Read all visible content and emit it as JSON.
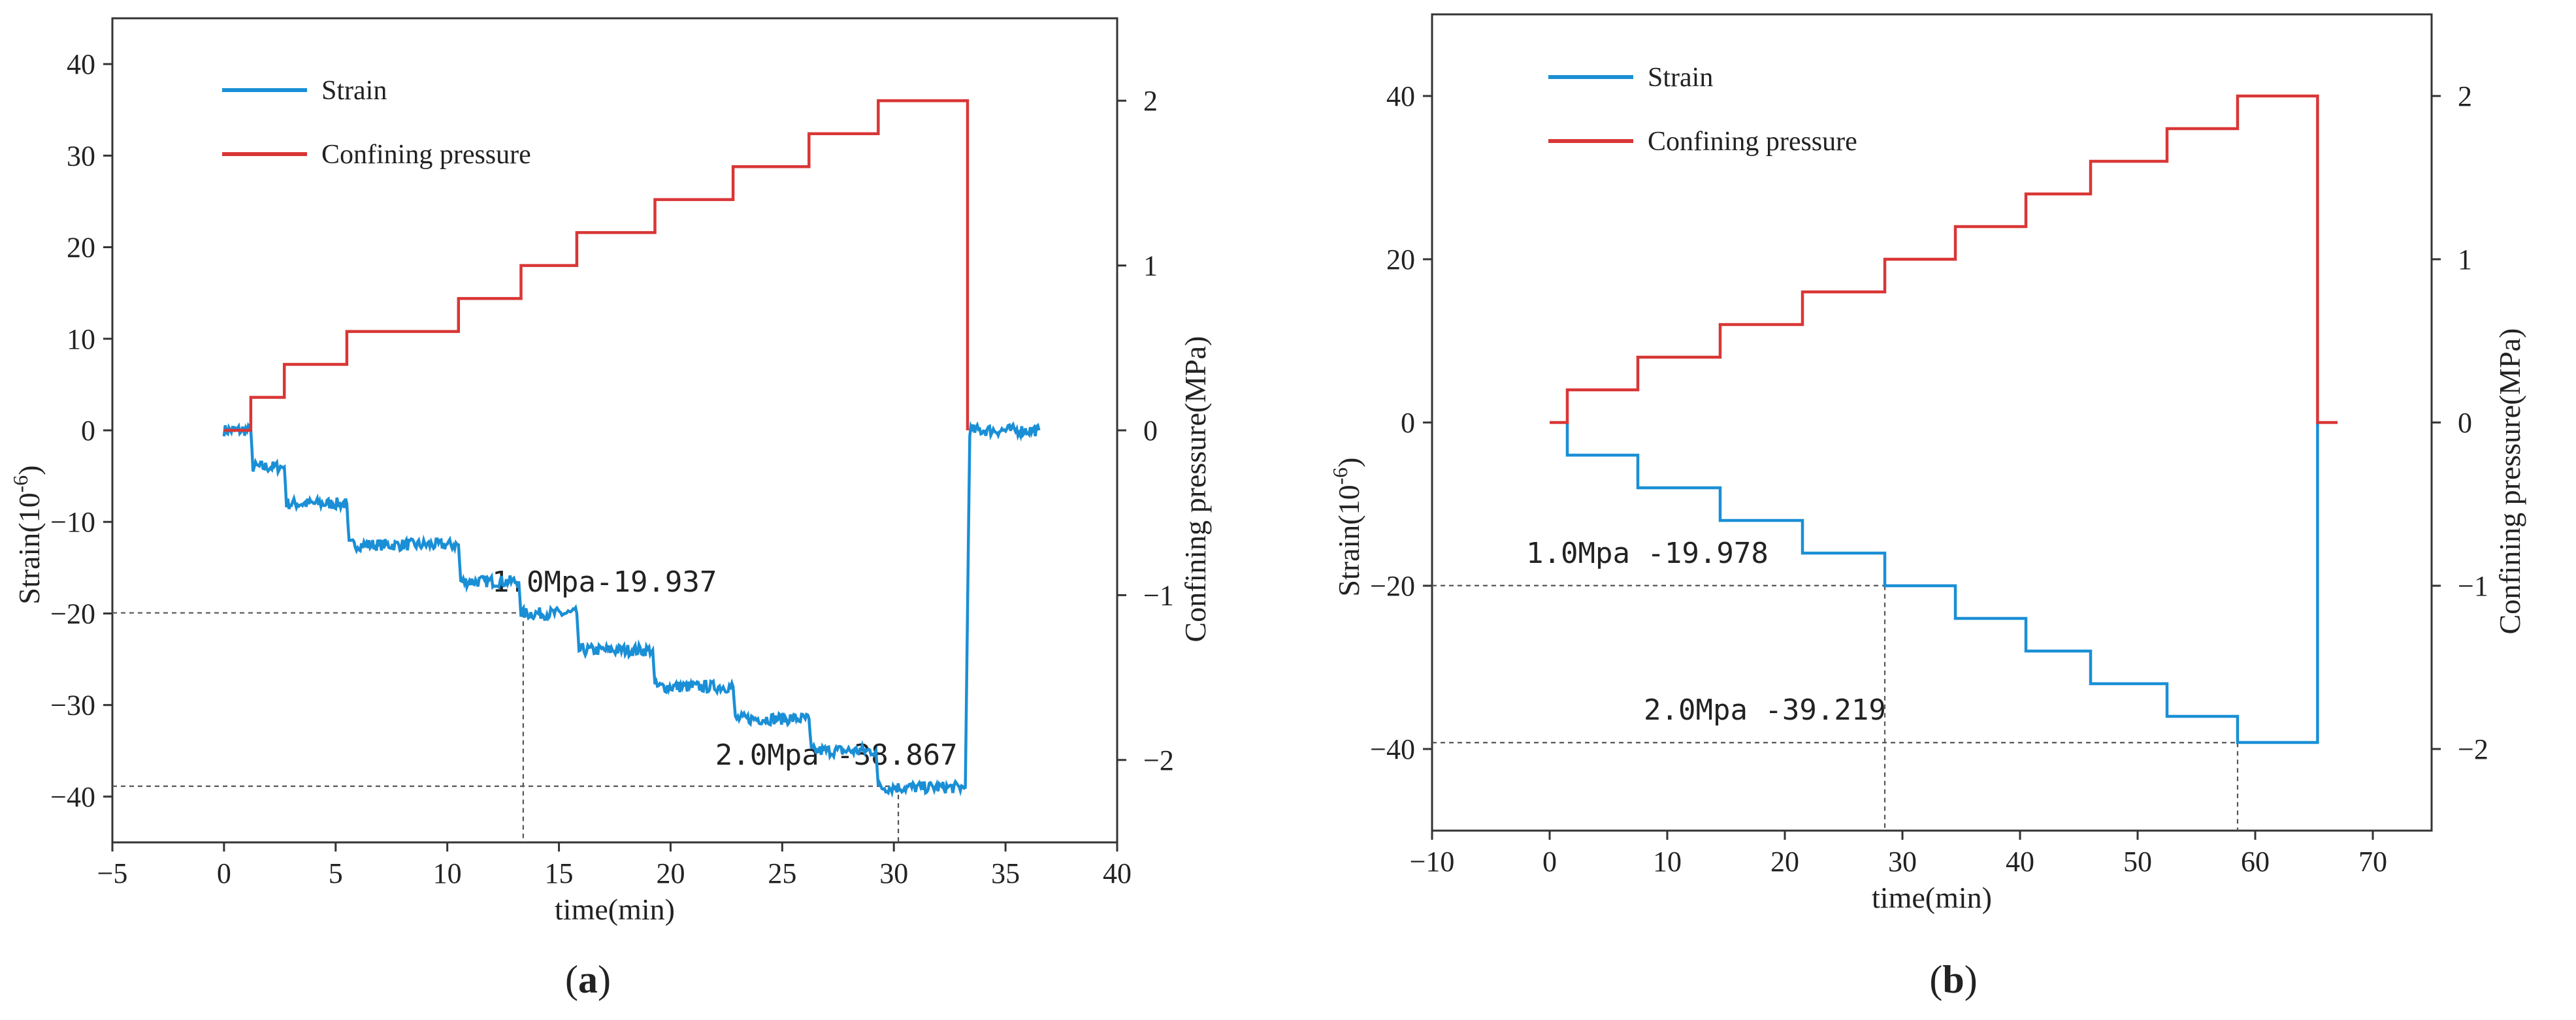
{
  "colors": {
    "strain": "#1a8fd6",
    "pressure": "#d93636",
    "axis": "#333333",
    "guide": "#555555"
  },
  "chart_data": [
    {
      "type": "line",
      "panel_label": "(a)",
      "panel_letter": "a",
      "xlabel": "time(min)",
      "ylabel_left": "Strain(10",
      "ylabel_left_sup": "-6",
      "ylabel_left_close": ")",
      "ylabel_right": "Confining pressure(MPa)",
      "xlim": [
        -5,
        40
      ],
      "ylim_left": [
        -45,
        45
      ],
      "ylim_right": [
        -2.5,
        2.5
      ],
      "xticks": [
        -5,
        0,
        5,
        10,
        15,
        20,
        25,
        30,
        35,
        40
      ],
      "yticks_left": [
        -40,
        -30,
        -20,
        -10,
        0,
        10,
        20,
        30,
        40
      ],
      "yticks_right": [
        -2,
        -1,
        0,
        1,
        2
      ],
      "legend": {
        "position": "top-left",
        "entries": [
          "Strain",
          "Confining pressure"
        ]
      },
      "series": [
        {
          "name": "Strain",
          "axis": "left",
          "noise": true,
          "x": [
            0,
            1.2,
            1.3,
            2.7,
            2.8,
            5.5,
            5.6,
            10.5,
            10.6,
            13.2,
            13.3,
            15.8,
            15.9,
            19.2,
            19.3,
            22.8,
            22.9,
            26.2,
            26.3,
            29.2,
            29.3,
            33.2,
            33.4,
            36.5
          ],
          "y": [
            0,
            0,
            -4,
            -4,
            -8,
            -8,
            -12.5,
            -12.5,
            -16.5,
            -16.5,
            -20,
            -20,
            -24,
            -24,
            -28,
            -28,
            -31.5,
            -31.5,
            -35,
            -35,
            -39,
            -39,
            0,
            0
          ]
        },
        {
          "name": "Confining pressure",
          "axis": "right",
          "noise": false,
          "x": [
            0,
            1.2,
            1.2,
            2.7,
            2.7,
            5.5,
            5.5,
            10.5,
            10.5,
            13.3,
            13.3,
            15.8,
            15.8,
            19.3,
            19.3,
            22.8,
            22.8,
            26.2,
            26.2,
            29.3,
            29.3,
            33.3,
            33.3
          ],
          "y": [
            0,
            0,
            0.2,
            0.2,
            0.4,
            0.4,
            0.6,
            0.6,
            0.8,
            0.8,
            1.0,
            1.0,
            1.2,
            1.2,
            1.4,
            1.4,
            1.6,
            1.6,
            1.8,
            1.8,
            2.0,
            2.0,
            0
          ]
        }
      ],
      "annotations": [
        {
          "text": "1.0Mpa-19.937",
          "x": 13.4,
          "y": -19.937,
          "label_x": 12,
          "label_y": -17.6
        },
        {
          "text": "2.0Mpa   -38.867",
          "x": 30.2,
          "y": -38.867,
          "label_x": 22,
          "label_y": -36.5
        }
      ]
    },
    {
      "type": "line",
      "panel_label": "(b)",
      "panel_letter": "b",
      "xlabel": "time(min)",
      "ylabel_left": "Strain(10",
      "ylabel_left_sup": "-6",
      "ylabel_left_close": ")",
      "ylabel_right": "Confining pressure(MPa)",
      "xlim": [
        -10,
        75
      ],
      "ylim_left": [
        -50,
        50
      ],
      "ylim_right": [
        -2.5,
        2.5
      ],
      "xticks": [
        -10,
        0,
        10,
        20,
        30,
        40,
        50,
        60,
        70
      ],
      "yticks_left": [
        -40,
        -20,
        0,
        20,
        40
      ],
      "yticks_right": [
        -2,
        -1,
        0,
        1,
        2
      ],
      "legend": {
        "position": "top-left",
        "entries": [
          "Strain",
          "Confining pressure"
        ]
      },
      "series": [
        {
          "name": "Strain",
          "axis": "left",
          "noise": false,
          "x": [
            1.5,
            1.5,
            7.5,
            7.5,
            14.5,
            14.5,
            21.5,
            21.5,
            28.5,
            28.5,
            34.5,
            34.5,
            40.5,
            40.5,
            46,
            46,
            52.5,
            52.5,
            58.5,
            58.5,
            65.3,
            65.3
          ],
          "y": [
            0,
            -4,
            -4,
            -8,
            -8,
            -12,
            -12,
            -16,
            -16,
            -20,
            -20,
            -24,
            -24,
            -28,
            -28,
            -32,
            -32,
            -36,
            -36,
            -39.2,
            -39.2,
            0
          ]
        },
        {
          "name": "Confining pressure",
          "axis": "right",
          "noise": false,
          "x": [
            0,
            1.5,
            1.5,
            7.5,
            7.5,
            14.5,
            14.5,
            21.5,
            21.5,
            28.5,
            28.5,
            34.5,
            34.5,
            40.5,
            40.5,
            46,
            46,
            52.5,
            52.5,
            58.5,
            58.5,
            65.3,
            65.3,
            67
          ],
          "y": [
            0,
            0,
            0.2,
            0.2,
            0.4,
            0.4,
            0.6,
            0.6,
            0.8,
            0.8,
            1.0,
            1.0,
            1.2,
            1.2,
            1.4,
            1.4,
            1.6,
            1.6,
            1.8,
            1.8,
            2.0,
            2.0,
            0,
            0
          ]
        }
      ],
      "annotations": [
        {
          "text": "1.0Mpa  -19.978",
          "x": 28.5,
          "y": -19.978,
          "label_x": -2,
          "label_y": -17.2
        },
        {
          "text": "2.0Mpa  -39.219",
          "x": 58.5,
          "y": -39.219,
          "label_x": 8,
          "label_y": -36.4
        }
      ]
    }
  ]
}
